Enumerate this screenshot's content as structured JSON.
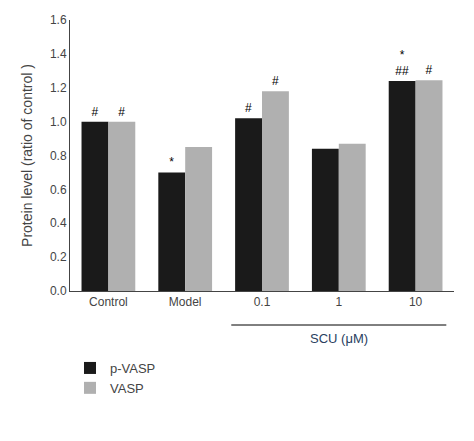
{
  "chart_data": {
    "type": "bar",
    "categories": [
      "Control",
      "Model",
      "0.1",
      "1",
      "10"
    ],
    "series": [
      {
        "name": "p-VASP",
        "color": "#1a1a1a",
        "values": [
          1.0,
          0.7,
          1.02,
          0.84,
          1.24
        ]
      },
      {
        "name": "VASP",
        "color": "#b0b0b0",
        "values": [
          1.0,
          0.85,
          1.18,
          0.87,
          1.245
        ]
      }
    ],
    "ylabel": "Protein level (ratio of control )",
    "ylim": [
      0.0,
      1.6
    ],
    "yticks": [
      {
        "value": 0,
        "label": "0.0"
      },
      0.2,
      0.4,
      0.6,
      0.8,
      {
        "value": 1,
        "label": "1.0"
      },
      1.2,
      1.4,
      1.6
    ],
    "annotations": [
      {
        "text": "#",
        "category": "Control",
        "series": "p-VASP"
      },
      {
        "text": "#",
        "category": "Control",
        "series": "VASP"
      },
      {
        "text": "*",
        "category": "Model",
        "series": "p-VASP"
      },
      {
        "text": "#",
        "category": "0.1",
        "series": "p-VASP"
      },
      {
        "text": "#",
        "category": "0.1",
        "series": "VASP"
      },
      {
        "text": "*",
        "category": "10",
        "series": "p-VASP"
      },
      {
        "text": "##",
        "category": "10",
        "series": "p-VASP"
      },
      {
        "text": "#",
        "category": "10",
        "series": "VASP"
      },
      {
        "text": "SCU (μM)",
        "span": [
          "0.1",
          "10"
        ]
      }
    ],
    "grid": false,
    "legend": "bottom left"
  }
}
